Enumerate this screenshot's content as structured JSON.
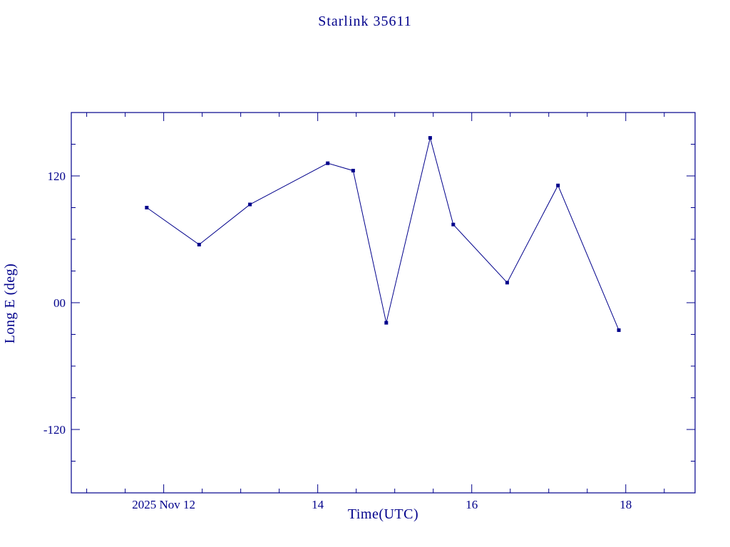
{
  "chart_data": {
    "type": "line",
    "title": "Starlink 35611",
    "xlabel": "Time(UTC)",
    "ylabel": "Long E (deg)",
    "series": [
      {
        "name": "Long E",
        "x": [
          11.78,
          12.46,
          13.12,
          14.13,
          14.46,
          14.89,
          15.46,
          15.76,
          16.46,
          17.12,
          17.91
        ],
        "y": [
          90,
          55,
          93,
          132,
          125,
          -19,
          156,
          74,
          19,
          111,
          -26
        ]
      }
    ],
    "xlim": [
      10.8,
      18.9
    ],
    "ylim": [
      -180,
      180
    ],
    "x_major_ticks": [
      {
        "value": 12,
        "label": "2025 Nov 12"
      },
      {
        "value": 14,
        "label": "14"
      },
      {
        "value": 16,
        "label": "16"
      },
      {
        "value": 18,
        "label": "18"
      }
    ],
    "x_minor_ticks": [
      11,
      11.5,
      12.5,
      13,
      13.5,
      14.5,
      15,
      15.5,
      16.5,
      17,
      17.5,
      18.5
    ],
    "y_major_ticks": [
      {
        "value": 120,
        "label": "120"
      },
      {
        "value": 0,
        "label": "00"
      },
      {
        "value": -120,
        "label": "-120"
      }
    ],
    "y_minor_ticks": [
      -150,
      -90,
      -60,
      -30,
      30,
      60,
      90,
      150
    ],
    "line_color": "#00008b",
    "background": "#ffffff",
    "marker": "square",
    "grid": false,
    "legend": false
  }
}
